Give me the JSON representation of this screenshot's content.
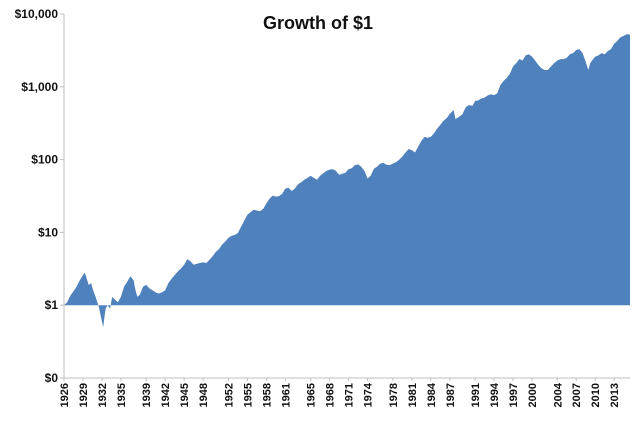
{
  "chart_data": {
    "type": "area",
    "title": "Growth of $1",
    "xlabel": "",
    "ylabel": "",
    "y_scale": "log",
    "y_tick_labels": [
      "$0",
      "$1",
      "$10",
      "$100",
      "$1,000",
      "$10,000"
    ],
    "y_tick_values": [
      0.1,
      1,
      10,
      100,
      1000,
      10000
    ],
    "ylim": [
      0.1,
      10000
    ],
    "xlim": [
      1926,
      2015.5
    ],
    "grid": false,
    "legend": "none",
    "color": "#4f81bd",
    "x_tick_labels": [
      "1926",
      "1929",
      "1932",
      "1935",
      "1939",
      "1942",
      "1945",
      "1948",
      "1952",
      "1955",
      "1958",
      "1961",
      "1965",
      "1968",
      "1971",
      "1974",
      "1978",
      "1981",
      "1984",
      "1987",
      "1991",
      "1994",
      "1997",
      "2000",
      "2004",
      "2007",
      "2010",
      "2013"
    ],
    "series": [
      {
        "name": "Growth of $1",
        "x": [
          1926,
          1926.5,
          1927,
          1927.5,
          1928,
          1928.5,
          1929,
          1929.3,
          1929.6,
          1929.9,
          1930.3,
          1930.6,
          1931,
          1931.5,
          1932,
          1932.2,
          1932.4,
          1932.6,
          1932.9,
          1933.3,
          1933.6,
          1934,
          1934.5,
          1935,
          1935.5,
          1936,
          1936.5,
          1937,
          1937.3,
          1937.6,
          1938,
          1938.5,
          1939,
          1939.5,
          1940,
          1940.5,
          1941,
          1941.5,
          1942,
          1942.5,
          1943,
          1943.5,
          1944,
          1944.5,
          1945,
          1945.5,
          1946,
          1946.5,
          1947,
          1947.5,
          1948,
          1948.5,
          1949,
          1949.5,
          1950,
          1950.5,
          1951,
          1951.5,
          1952,
          1952.5,
          1953,
          1953.5,
          1954,
          1954.5,
          1955,
          1955.5,
          1956,
          1956.5,
          1957,
          1957.5,
          1958,
          1958.5,
          1959,
          1959.5,
          1960,
          1960.5,
          1961,
          1961.5,
          1962,
          1962.5,
          1963,
          1963.5,
          1964,
          1964.5,
          1965,
          1965.5,
          1966,
          1966.5,
          1967,
          1967.5,
          1968,
          1968.5,
          1969,
          1969.5,
          1970,
          1970.5,
          1971,
          1971.5,
          1972,
          1972.5,
          1973,
          1973.5,
          1974,
          1974.5,
          1975,
          1975.5,
          1976,
          1976.5,
          1977,
          1977.5,
          1978,
          1978.5,
          1979,
          1979.5,
          1980,
          1980.5,
          1981,
          1981.5,
          1982,
          1982.5,
          1983,
          1983.5,
          1984,
          1984.5,
          1985,
          1985.5,
          1986,
          1986.5,
          1987,
          1987.6,
          1987.9,
          1988.5,
          1989,
          1989.5,
          1990,
          1990.6,
          1991,
          1991.5,
          1992,
          1992.5,
          1993,
          1993.5,
          1994,
          1994.5,
          1995,
          1995.5,
          1996,
          1996.5,
          1997,
          1997.5,
          1998,
          1998.5,
          1999,
          1999.5,
          2000,
          2000.5,
          2001,
          2001.5,
          2002,
          2002.5,
          2003,
          2003.5,
          2004,
          2004.5,
          2005,
          2005.5,
          2006,
          2006.5,
          2007,
          2007.5,
          2008,
          2008.5,
          2008.9,
          2009.2,
          2009.5,
          2010,
          2010.5,
          2011,
          2011.5,
          2012,
          2012.5,
          2013,
          2013.5,
          2014,
          2014.5,
          2015,
          2015.5
        ],
        "values": [
          1.0,
          1.1,
          1.35,
          1.55,
          1.8,
          2.2,
          2.6,
          2.8,
          2.3,
          1.9,
          2.0,
          1.6,
          1.3,
          0.95,
          0.6,
          0.5,
          0.7,
          0.9,
          1.0,
          0.9,
          1.3,
          1.2,
          1.1,
          1.3,
          1.8,
          2.1,
          2.5,
          2.2,
          1.6,
          1.3,
          1.4,
          1.8,
          1.9,
          1.7,
          1.6,
          1.5,
          1.45,
          1.5,
          1.6,
          2.0,
          2.3,
          2.6,
          2.9,
          3.2,
          3.6,
          4.3,
          4.0,
          3.6,
          3.7,
          3.8,
          3.9,
          3.8,
          4.2,
          4.7,
          5.4,
          5.9,
          6.8,
          7.5,
          8.4,
          9.0,
          9.2,
          9.8,
          12.0,
          14.5,
          17.5,
          19.0,
          20.5,
          20.0,
          19.5,
          21.0,
          25.0,
          29.0,
          32.0,
          31.0,
          31.5,
          34.0,
          40.0,
          41.0,
          37.0,
          40.0,
          46.0,
          49.0,
          53.0,
          56.0,
          60.0,
          56.0,
          53.0,
          60.0,
          65.0,
          70.0,
          73.0,
          74.0,
          70.0,
          62.0,
          64.0,
          66.0,
          74.0,
          76.0,
          84.0,
          86.0,
          80.0,
          70.0,
          55.0,
          60.0,
          75.0,
          80.0,
          88.0,
          90.0,
          85.0,
          84.0,
          88.0,
          92.0,
          100.0,
          110.0,
          125.0,
          140.0,
          135.0,
          125.0,
          150.0,
          180.0,
          205.0,
          200.0,
          205.0,
          230.0,
          265.0,
          300.0,
          340.0,
          370.0,
          425.0,
          480.0,
          360.0,
          390.0,
          420.0,
          520.0,
          560.0,
          550.0,
          640.0,
          650.0,
          690.0,
          710.0,
          760.0,
          790.0,
          770.0,
          810.0,
          1060.0,
          1200.0,
          1320.0,
          1500.0,
          1900.0,
          2100.0,
          2400.0,
          2300.0,
          2700.0,
          2800.0,
          2600.0,
          2300.0,
          2000.0,
          1800.0,
          1700.0,
          1700.0,
          1900.0,
          2100.0,
          2300.0,
          2400.0,
          2400.0,
          2500.0,
          2800.0,
          2900.0,
          3200.0,
          3300.0,
          2900.0,
          2200.0,
          1700.0,
          2100.0,
          2300.0,
          2600.0,
          2700.0,
          2900.0,
          2800.0,
          3100.0,
          3300.0,
          3900.0,
          4300.0,
          4800.0,
          5000.0,
          5300.0,
          5200.0
        ]
      }
    ]
  }
}
